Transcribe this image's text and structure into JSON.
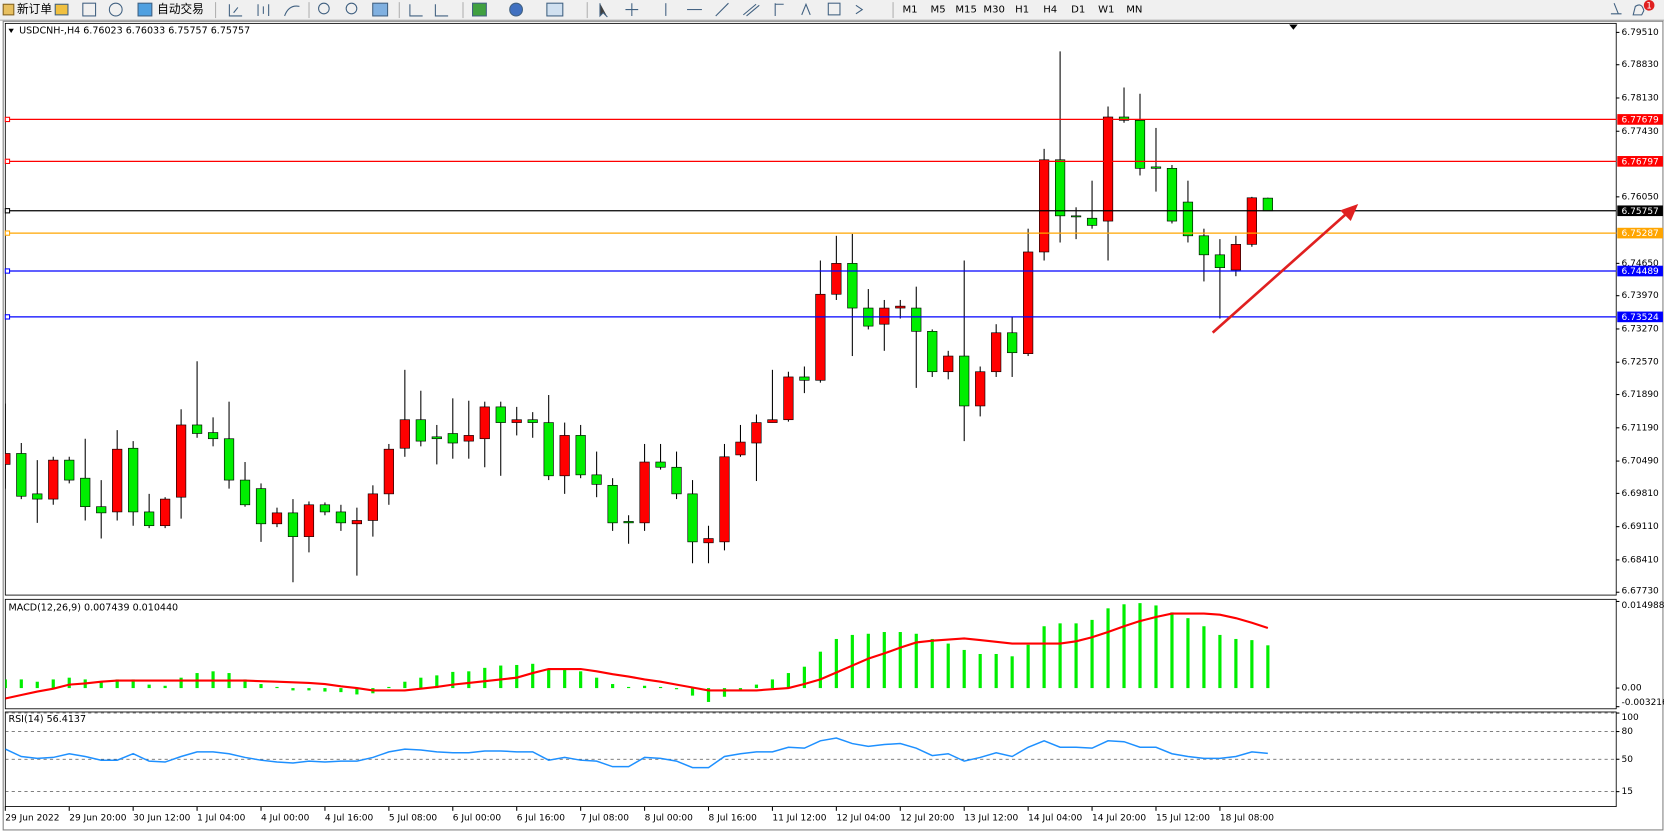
{
  "toolbar": {
    "new_order": "新订单",
    "auto_trading": "自动交易",
    "timeframes": [
      "M1",
      "M5",
      "M15",
      "M30",
      "H1",
      "H4",
      "D1",
      "W1",
      "MN"
    ],
    "notifications": "1"
  },
  "chart_data": [
    {
      "type": "candlestick",
      "title": "USDCNH-,H4 6.76023 6.76033 6.75757 6.75757",
      "categories": [
        "29 Jun 2022",
        null,
        null,
        null,
        "29 Jun 20:00",
        null,
        null,
        null,
        "30 Jun 12:00",
        null,
        null,
        null,
        "1 Jul 04:00",
        null,
        null,
        null,
        "4 Jul 00:00",
        null,
        null,
        null,
        "4 Jul 16:00",
        null,
        null,
        null,
        "5 Jul 08:00",
        null,
        null,
        null,
        "6 Jul 00:00",
        null,
        null,
        null,
        "6 Jul 16:00",
        null,
        null,
        null,
        "7 Jul 08:00",
        null,
        null,
        null,
        "8 Jul 00:00",
        null,
        null,
        null,
        "8 Jul 16:00",
        null,
        null,
        null,
        "11 Jul 12:00",
        null,
        null,
        null,
        "12 Jul 04:00",
        null,
        null,
        null,
        "12 Jul 20:00",
        null,
        null,
        null,
        "13 Jul 12:00",
        null,
        null,
        null,
        "14 Jul 04:00",
        null,
        null,
        null,
        "14 Jul 20:00",
        null,
        null,
        null,
        "15 Jul 12:00",
        null,
        null,
        null,
        "18 Jul 08:00",
        null,
        null,
        null
      ],
      "open": [
        6.7042,
        6.7065,
        6.698,
        6.6969,
        6.7051,
        6.7013,
        6.6953,
        6.6942,
        6.7076,
        6.6942,
        6.6913,
        6.6973,
        6.7125,
        6.7109,
        6.7096,
        6.7009,
        6.6991,
        6.6917,
        6.694,
        6.689,
        6.6957,
        6.6942,
        6.6917,
        6.6924,
        6.698,
        6.7076,
        6.7136,
        6.71,
        6.7107,
        6.7091,
        6.7096,
        6.7163,
        6.713,
        6.7136,
        6.713,
        6.7018,
        6.7103,
        6.702,
        6.6998,
        6.6922,
        6.6919,
        6.7047,
        6.7036,
        6.698,
        6.6877,
        6.6879,
        6.7062,
        6.7087,
        6.713,
        6.7136,
        6.7226,
        6.7219,
        6.74,
        6.7465,
        6.7371,
        6.7337,
        6.7371,
        6.7371,
        6.7322,
        6.7237,
        6.727,
        6.7165,
        6.7237,
        6.7319,
        6.7275,
        6.7489,
        6.7683,
        6.7565,
        6.756,
        6.7554,
        6.7773,
        6.7766,
        6.7668,
        6.7665,
        6.7594,
        6.7523,
        6.7483,
        6.7451,
        6.7505,
        6.76023
      ],
      "high": [
        6.717,
        6.7087,
        6.7051,
        6.7058,
        6.7058,
        6.7096,
        6.7009,
        6.7114,
        6.7091,
        6.698,
        6.6973,
        6.7158,
        6.7259,
        6.7141,
        6.7174,
        6.7047,
        6.7002,
        6.6951,
        6.6969,
        6.6964,
        6.6962,
        6.6957,
        6.6951,
        6.6998,
        6.7085,
        6.7241,
        6.7197,
        6.7125,
        6.7181,
        6.7176,
        6.7174,
        6.7174,
        6.7163,
        6.7152,
        6.7188,
        6.713,
        6.7125,
        6.7069,
        6.7013,
        6.6935,
        6.7085,
        6.7085,
        6.7069,
        6.7009,
        6.6913,
        6.7085,
        6.7125,
        6.7147,
        6.7241,
        6.7237,
        6.7248,
        6.7471,
        6.7523,
        6.7527,
        6.7411,
        6.7388,
        6.7388,
        6.7416,
        6.7326,
        6.7281,
        6.7471,
        6.7248,
        6.7337,
        6.7353,
        6.7538,
        6.7706,
        6.7911,
        6.7583,
        6.7639,
        6.7795,
        6.7835,
        6.7822,
        6.775,
        6.7672,
        6.7639,
        6.7538,
        6.7516,
        6.7523,
        6.7605,
        6.76033
      ],
      "low": [
        6.6991,
        6.6969,
        6.6919,
        6.6957,
        6.7002,
        6.6924,
        6.6886,
        6.6924,
        6.6913,
        6.6908,
        6.6908,
        6.6928,
        6.7098,
        6.708,
        6.6991,
        6.6953,
        6.6879,
        6.691,
        6.6794,
        6.6857,
        6.6935,
        6.6902,
        6.6808,
        6.689,
        6.6957,
        6.7058,
        6.708,
        6.7042,
        6.7054,
        6.7054,
        6.7036,
        6.7018,
        6.7103,
        6.7098,
        6.7009,
        6.698,
        6.7013,
        6.6973,
        6.6902,
        6.6875,
        6.6902,
        6.7031,
        6.6969,
        6.6834,
        6.6834,
        6.6861,
        6.7058,
        6.7007,
        6.713,
        6.7132,
        6.7192,
        6.7214,
        6.7388,
        6.727,
        6.7326,
        6.7281,
        6.7349,
        6.7203,
        6.7226,
        6.7221,
        6.7091,
        6.7143,
        6.7226,
        6.7226,
        6.727,
        6.7471,
        6.7509,
        6.7516,
        6.7538,
        6.7471,
        6.7761,
        6.765,
        6.7616,
        6.7549,
        6.7509,
        6.7427,
        6.7349,
        6.7438,
        6.75,
        6.75757
      ],
      "close": [
        6.7065,
        6.6975,
        6.6969,
        6.7051,
        6.7009,
        6.6953,
        6.694,
        6.7074,
        6.6942,
        6.6913,
        6.6969,
        6.7125,
        6.7107,
        6.7096,
        6.7009,
        6.6957,
        6.6917,
        6.694,
        6.689,
        6.6957,
        6.6942,
        6.6919,
        6.6924,
        6.698,
        6.7074,
        6.7136,
        6.7091,
        6.7096,
        6.7087,
        6.7103,
        6.7163,
        6.713,
        6.7136,
        6.713,
        6.7018,
        6.7103,
        6.702,
        6.7,
        6.6919,
        6.6919,
        6.7047,
        6.7036,
        6.698,
        6.6879,
        6.6886,
        6.7058,
        6.7089,
        6.713,
        6.7136,
        6.7226,
        6.7219,
        6.74,
        6.7465,
        6.7371,
        6.7333,
        6.7371,
        6.7375,
        6.7322,
        6.7237,
        6.727,
        6.7165,
        6.7237,
        6.7319,
        6.7277,
        6.7489,
        6.7683,
        6.7565,
        6.7563,
        6.7545,
        6.7773,
        6.7766,
        6.7665,
        6.7665,
        6.7554,
        6.7523,
        6.7483,
        6.7456,
        6.7505,
        6.7603,
        6.75757
      ],
      "up_color": "#ff0000",
      "down_color": "#00ee00",
      "ylim": [
        6.6767,
        6.797
      ],
      "yticks": [
        {
          "value": 6.7951,
          "label": "6.79510"
        },
        {
          "value": 6.7883,
          "label": "6.78830"
        },
        {
          "value": 6.7813,
          "label": "6.78130"
        },
        {
          "value": 6.7743,
          "label": "6.77430"
        },
        {
          "value": 6.7605,
          "label": "6.76050"
        },
        {
          "value": 6.7465,
          "label": "6.74650"
        },
        {
          "value": 6.7397,
          "label": "6.73970"
        },
        {
          "value": 6.7327,
          "label": "6.73270"
        },
        {
          "value": 6.7257,
          "label": "6.72570"
        },
        {
          "value": 6.7189,
          "label": "6.71890"
        },
        {
          "value": 6.7119,
          "label": "6.71190"
        },
        {
          "value": 6.7049,
          "label": "6.70490"
        },
        {
          "value": 6.6981,
          "label": "6.69810"
        },
        {
          "value": 6.6911,
          "label": "6.69110"
        },
        {
          "value": 6.6841,
          "label": "6.68410"
        },
        {
          "value": 6.6773,
          "label": "6.67730"
        }
      ],
      "hlines": [
        {
          "value": 6.77679,
          "color": "#ff0000"
        },
        {
          "value": 6.76797,
          "color": "#ff0000"
        },
        {
          "value": 6.75757,
          "color": "#000000"
        },
        {
          "value": 6.75287,
          "color": "#ffa500"
        },
        {
          "value": 6.74489,
          "color": "#0000ff"
        },
        {
          "value": 6.73524,
          "color": "#0000ff"
        }
      ]
    },
    {
      "type": "combo",
      "title": "MACD(12,26,9) 0.007439 0.010440",
      "series": [
        {
          "style": "histogram",
          "color": "#00ee00",
          "values": [
            0.0015,
            0.0015,
            0.0011,
            0.0015,
            0.0018,
            0.0015,
            0.0011,
            0.0015,
            0.0015,
            0.0006,
            0.0004,
            0.0018,
            0.0026,
            0.0029,
            0.0026,
            0.0015,
            0.0007,
            0.0002,
            -0.0004,
            -0.0004,
            -0.0006,
            -0.0007,
            -0.0011,
            -0.0009,
            0.0002,
            0.0011,
            0.0018,
            0.0022,
            0.0028,
            0.0029,
            0.0035,
            0.0039,
            0.004,
            0.0042,
            0.0033,
            0.0033,
            0.0029,
            0.0018,
            0.0007,
            0.0002,
            0.0004,
            0.0002,
            -0.0002,
            -0.0013,
            -0.0024,
            -0.0015,
            -0.0004,
            0.0006,
            0.0015,
            0.0026,
            0.0037,
            0.0063,
            0.0085,
            0.0092,
            0.0094,
            0.0097,
            0.0097,
            0.0094,
            0.0085,
            0.0077,
            0.0066,
            0.0059,
            0.0059,
            0.0055,
            0.0075,
            0.0107,
            0.0112,
            0.0112,
            0.0118,
            0.0138,
            0.0145,
            0.0147,
            0.0143,
            0.0131,
            0.0121,
            0.0107,
            0.0092,
            0.0085,
            0.0083,
            0.0074
          ]
        },
        {
          "style": "line",
          "color": "#ff0000",
          "values": [
            -0.0018,
            -0.0012,
            -0.0006,
            -0.0001,
            0.0006,
            0.0008,
            0.0011,
            0.0013,
            0.0013,
            0.0013,
            0.0013,
            0.0013,
            0.0013,
            0.0013,
            0.0013,
            0.0013,
            0.0012,
            0.0011,
            0.001,
            0.0009,
            0.0007,
            0.0003,
            0.0,
            -0.0004,
            -0.0004,
            -0.0004,
            -0.0001,
            0.0002,
            0.0006,
            0.0009,
            0.0012,
            0.0015,
            0.0018,
            0.0026,
            0.0033,
            0.0033,
            0.0033,
            0.0029,
            0.0024,
            0.002,
            0.0015,
            0.0011,
            0.0006,
            0.0001,
            -0.0004,
            -0.0004,
            -0.0004,
            -0.0004,
            -0.0002,
            0.0,
            0.0007,
            0.0015,
            0.0027,
            0.0039,
            0.0051,
            0.006,
            0.007,
            0.0079,
            0.0082,
            0.0084,
            0.0086,
            0.0083,
            0.008,
            0.0077,
            0.0077,
            0.0077,
            0.0077,
            0.0081,
            0.0088,
            0.0097,
            0.0107,
            0.0116,
            0.0123,
            0.0129,
            0.0129,
            0.0129,
            0.0127,
            0.0121,
            0.0113,
            0.0104
          ]
        }
      ],
      "ylim": [
        -0.003216,
        0.014988
      ],
      "yticks": [
        0.014988,
        {
          "value": 0,
          "label": "0.00"
        },
        -0.003216
      ]
    },
    {
      "type": "line",
      "title": "RSI(14) 56.4137",
      "series": [
        {
          "color": "#1e90ff",
          "values": [
            61,
            53,
            51,
            52,
            56,
            53,
            49,
            49,
            56,
            48,
            47,
            53,
            58,
            58,
            56,
            52,
            49,
            47,
            46,
            48,
            47,
            48,
            48,
            52,
            58,
            61,
            60,
            58,
            57,
            57,
            59,
            59,
            58,
            58,
            49,
            52,
            49,
            48,
            42,
            42,
            52,
            51,
            48,
            41,
            41,
            53,
            56,
            58,
            58,
            63,
            62,
            70,
            73,
            67,
            64,
            66,
            67,
            62,
            54,
            56,
            48,
            52,
            57,
            53,
            63,
            70,
            63,
            63,
            62,
            70,
            69,
            63,
            63,
            56,
            53,
            51,
            51,
            53,
            58,
            56.4137
          ]
        }
      ],
      "ylim": [
        0,
        100
      ],
      "yticks": [
        100,
        80,
        50,
        15
      ],
      "dashed_grid": true
    }
  ]
}
